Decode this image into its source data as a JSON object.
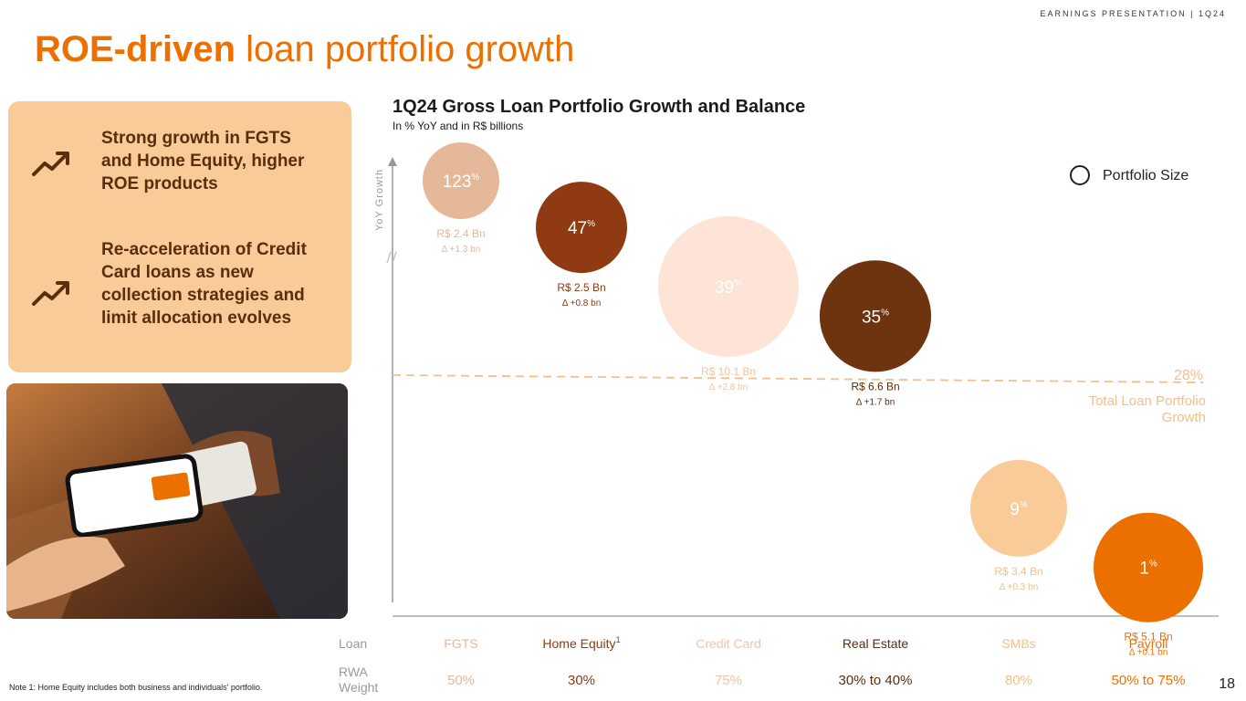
{
  "header": {
    "tag": "EARNINGS PRESENTATION | 1Q24",
    "title_bold": "ROE-driven",
    "title_light": "loan portfolio growth"
  },
  "highlights": [
    {
      "icon": "trending-up-icon",
      "text": "Strong growth in FGTS and Home Equity, higher ROE products"
    },
    {
      "icon": "trending-up-icon",
      "text": "Re-acceleration of Credit Card loans as new collection strategies and limit allocation evolves"
    }
  ],
  "photo": {
    "subject": "hand-holding-phone-over-card-terminal"
  },
  "legend": {
    "label": "Portfolio Size"
  },
  "row_labels": {
    "loan": "Loan",
    "rwa": "RWA Weight"
  },
  "footnote": "Note 1: Home Equity includes both business and individuals' portfolio.",
  "page_number": "18",
  "chart_data": {
    "type": "scatter",
    "title": "1Q24 Gross Loan Portfolio Growth and Balance",
    "subtitle": "In % YoY and in R$ billions",
    "ylabel": "YoY Growth",
    "xlabel": "",
    "reference_line": {
      "value": 28,
      "label": "28%",
      "description": "Total Loan Portfolio Growth"
    },
    "series": [
      {
        "category": "FGTS",
        "superscript": "",
        "growth": 123,
        "growth_label": "123",
        "unit": "%",
        "balance": "R$ 2.4 Bn",
        "balance_value": 2.4,
        "delta": "Δ +1.3 bn",
        "rwa": "50%",
        "color": "#e5b89a",
        "label_color": "#e5b89a"
      },
      {
        "category": "Home Equity",
        "superscript": "1",
        "growth": 47,
        "growth_label": "47",
        "unit": "%",
        "balance": "R$ 2.5 Bn",
        "balance_value": 2.5,
        "delta": "Δ +0.8 bn",
        "rwa": "30%",
        "color": "#8f3a12",
        "label_color": "#8f3a12"
      },
      {
        "category": "Credit Card",
        "superscript": "",
        "growth": 39,
        "growth_label": "39",
        "unit": "%",
        "balance": "R$ 10.1 Bn",
        "balance_value": 10.1,
        "delta": "Δ +2.8 bn",
        "rwa": "75%",
        "color": "#fde4d6",
        "label_color": "#f1c4a6"
      },
      {
        "category": "Real Estate",
        "superscript": "",
        "growth": 35,
        "growth_label": "35",
        "unit": "%",
        "balance": "R$ 6.6 Bn",
        "balance_value": 6.6,
        "delta": "Δ +1.7 bn",
        "rwa": "30% to 40%",
        "color": "#6e3410",
        "label_color": "#5a2d0c"
      },
      {
        "category": "SMBs",
        "superscript": "",
        "growth": 9,
        "growth_label": "9",
        "unit": "%",
        "balance": "R$ 3.4 Bn",
        "balance_value": 3.4,
        "delta": "Δ +0.3 bn",
        "rwa": "80%",
        "color": "#f8cb98",
        "label_color": "#f3bf8a"
      },
      {
        "category": "Payroll",
        "superscript": "",
        "growth": 1,
        "growth_label": "1",
        "unit": "%",
        "balance": "R$ 5.1 Bn",
        "balance_value": 5.1,
        "delta": "Δ +0.1 bn",
        "rwa": "50% to 75%",
        "color": "#ec7000",
        "label_color": "#ec7000"
      }
    ]
  }
}
